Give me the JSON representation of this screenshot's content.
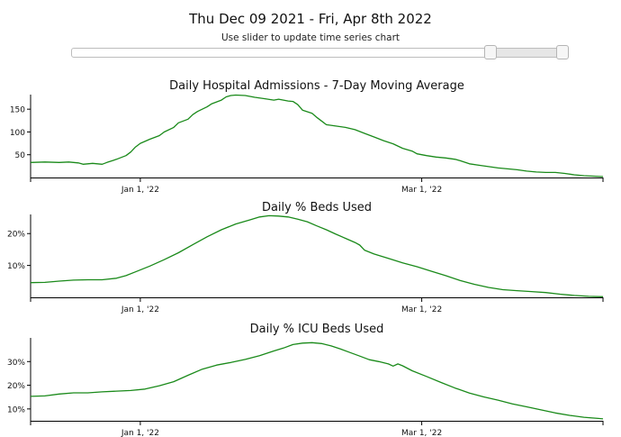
{
  "header": {
    "date_range": "Thu Dec 09 2021 - Fri, Apr 8th 2022",
    "instruction": "Use slider to update time series chart"
  },
  "slider": {
    "start_fraction": 0.845,
    "end_fraction": 0.99
  },
  "colors": {
    "line": "#1a8a1a",
    "axis": "#000000"
  },
  "chart_data": [
    {
      "type": "line",
      "title": "Daily Hospital Admissions - 7-Day Moving Average",
      "xlabel": "",
      "ylabel": "",
      "x_range": [
        0,
        120
      ],
      "x_ticks": [
        {
          "value": 23,
          "label": "Jan 1, '22"
        },
        {
          "value": 82,
          "label": "Mar 1, '22"
        }
      ],
      "ylim": [
        0,
        182
      ],
      "y_ticks": [
        {
          "value": 50,
          "label": "50"
        },
        {
          "value": 100,
          "label": "100"
        },
        {
          "value": 150,
          "label": "150"
        }
      ],
      "series": [
        {
          "name": "Hospital Admissions",
          "points": [
            [
              0,
              33
            ],
            [
              3,
              34
            ],
            [
              6,
              33
            ],
            [
              8,
              34
            ],
            [
              10,
              32
            ],
            [
              11,
              29
            ],
            [
              12,
              30
            ],
            [
              13,
              31
            ],
            [
              14,
              30
            ],
            [
              15,
              29
            ],
            [
              16,
              33
            ],
            [
              18,
              40
            ],
            [
              20,
              48
            ],
            [
              21,
              56
            ],
            [
              22,
              67
            ],
            [
              23,
              75
            ],
            [
              25,
              84
            ],
            [
              27,
              92
            ],
            [
              28,
              100
            ],
            [
              30,
              110
            ],
            [
              31,
              120
            ],
            [
              33,
              128
            ],
            [
              34,
              138
            ],
            [
              35,
              145
            ],
            [
              37,
              155
            ],
            [
              38,
              162
            ],
            [
              40,
              170
            ],
            [
              41,
              177
            ],
            [
              42,
              180
            ],
            [
              43,
              181
            ],
            [
              45,
              180
            ],
            [
              47,
              176
            ],
            [
              49,
              173
            ],
            [
              51,
              170
            ],
            [
              52,
              172
            ],
            [
              54,
              168
            ],
            [
              55,
              167
            ],
            [
              56,
              160
            ],
            [
              57,
              148
            ],
            [
              59,
              141
            ],
            [
              60,
              132
            ],
            [
              61,
              124
            ],
            [
              62,
              116
            ],
            [
              64,
              113
            ],
            [
              66,
              110
            ],
            [
              68,
              105
            ],
            [
              70,
              97
            ],
            [
              72,
              89
            ],
            [
              74,
              81
            ],
            [
              76,
              74
            ],
            [
              78,
              64
            ],
            [
              80,
              58
            ],
            [
              81,
              52
            ],
            [
              83,
              48
            ],
            [
              85,
              45
            ],
            [
              87,
              43
            ],
            [
              89,
              40
            ],
            [
              90,
              37
            ],
            [
              92,
              30
            ],
            [
              94,
              27
            ],
            [
              96,
              24
            ],
            [
              98,
              21
            ],
            [
              100,
              19
            ],
            [
              102,
              17
            ],
            [
              104,
              14
            ],
            [
              106,
              12
            ],
            [
              108,
              11
            ],
            [
              110,
              11
            ],
            [
              112,
              9
            ],
            [
              114,
              6
            ],
            [
              116,
              4
            ],
            [
              118,
              3
            ],
            [
              120,
              2
            ]
          ]
        }
      ]
    },
    {
      "type": "line",
      "title": "Daily % Beds Used",
      "xlabel": "",
      "ylabel": "",
      "x_range": [
        0,
        120
      ],
      "x_ticks": [
        {
          "value": 23,
          "label": "Jan 1, '22"
        },
        {
          "value": 82,
          "label": "Mar 1, '22"
        }
      ],
      "ylim": [
        0,
        0.26
      ],
      "y_ticks": [
        {
          "value": 0.1,
          "label": "10%"
        },
        {
          "value": 0.2,
          "label": "20%"
        }
      ],
      "series": [
        {
          "name": "% Beds Used",
          "points": [
            [
              0,
              0.046
            ],
            [
              3,
              0.047
            ],
            [
              6,
              0.051
            ],
            [
              9,
              0.054
            ],
            [
              12,
              0.055
            ],
            [
              15,
              0.055
            ],
            [
              18,
              0.06
            ],
            [
              20,
              0.068
            ],
            [
              22,
              0.08
            ],
            [
              25,
              0.098
            ],
            [
              28,
              0.118
            ],
            [
              31,
              0.14
            ],
            [
              34,
              0.165
            ],
            [
              37,
              0.19
            ],
            [
              40,
              0.212
            ],
            [
              43,
              0.23
            ],
            [
              46,
              0.243
            ],
            [
              48,
              0.252
            ],
            [
              50,
              0.256
            ],
            [
              52,
              0.255
            ],
            [
              54,
              0.252
            ],
            [
              56,
              0.245
            ],
            [
              58,
              0.237
            ],
            [
              60,
              0.224
            ],
            [
              62,
              0.212
            ],
            [
              64,
              0.198
            ],
            [
              66,
              0.185
            ],
            [
              68,
              0.172
            ],
            [
              69,
              0.164
            ],
            [
              70,
              0.148
            ],
            [
              72,
              0.136
            ],
            [
              75,
              0.122
            ],
            [
              78,
              0.108
            ],
            [
              81,
              0.096
            ],
            [
              84,
              0.082
            ],
            [
              87,
              0.068
            ],
            [
              90,
              0.053
            ],
            [
              93,
              0.041
            ],
            [
              96,
              0.031
            ],
            [
              99,
              0.024
            ],
            [
              102,
              0.021
            ],
            [
              105,
              0.018
            ],
            [
              108,
              0.015
            ],
            [
              111,
              0.01
            ],
            [
              114,
              0.006
            ],
            [
              117,
              0.003
            ],
            [
              120,
              0.002
            ]
          ]
        }
      ]
    },
    {
      "type": "line",
      "title": "Daily % ICU Beds Used",
      "xlabel": "",
      "ylabel": "",
      "x_range": [
        0,
        120
      ],
      "x_ticks": [
        {
          "value": 23,
          "label": "Jan 1, '22"
        },
        {
          "value": 82,
          "label": "Mar 1, '22"
        }
      ],
      "ylim": [
        0.05,
        0.4
      ],
      "y_ticks": [
        {
          "value": 0.1,
          "label": "10%"
        },
        {
          "value": 0.2,
          "label": "20%"
        },
        {
          "value": 0.3,
          "label": "30%"
        }
      ],
      "series": [
        {
          "name": "% ICU Beds Used",
          "points": [
            [
              0,
              0.153
            ],
            [
              3,
              0.155
            ],
            [
              6,
              0.163
            ],
            [
              9,
              0.168
            ],
            [
              12,
              0.168
            ],
            [
              15,
              0.172
            ],
            [
              18,
              0.175
            ],
            [
              21,
              0.178
            ],
            [
              24,
              0.184
            ],
            [
              27,
              0.198
            ],
            [
              30,
              0.215
            ],
            [
              33,
              0.242
            ],
            [
              36,
              0.268
            ],
            [
              39,
              0.285
            ],
            [
              42,
              0.296
            ],
            [
              45,
              0.309
            ],
            [
              48,
              0.325
            ],
            [
              51,
              0.345
            ],
            [
              53,
              0.357
            ],
            [
              55,
              0.372
            ],
            [
              57,
              0.378
            ],
            [
              59,
              0.38
            ],
            [
              61,
              0.376
            ],
            [
              63,
              0.366
            ],
            [
              65,
              0.353
            ],
            [
              67,
              0.338
            ],
            [
              69,
              0.323
            ],
            [
              71,
              0.308
            ],
            [
              73,
              0.3
            ],
            [
              75,
              0.29
            ],
            [
              76,
              0.281
            ],
            [
              77,
              0.29
            ],
            [
              78,
              0.282
            ],
            [
              80,
              0.261
            ],
            [
              83,
              0.237
            ],
            [
              86,
              0.212
            ],
            [
              89,
              0.188
            ],
            [
              92,
              0.167
            ],
            [
              95,
              0.151
            ],
            [
              98,
              0.137
            ],
            [
              101,
              0.121
            ],
            [
              104,
              0.109
            ],
            [
              107,
              0.096
            ],
            [
              110,
              0.083
            ],
            [
              113,
              0.073
            ],
            [
              116,
              0.065
            ],
            [
              119,
              0.06
            ],
            [
              120,
              0.058
            ]
          ]
        }
      ]
    }
  ]
}
